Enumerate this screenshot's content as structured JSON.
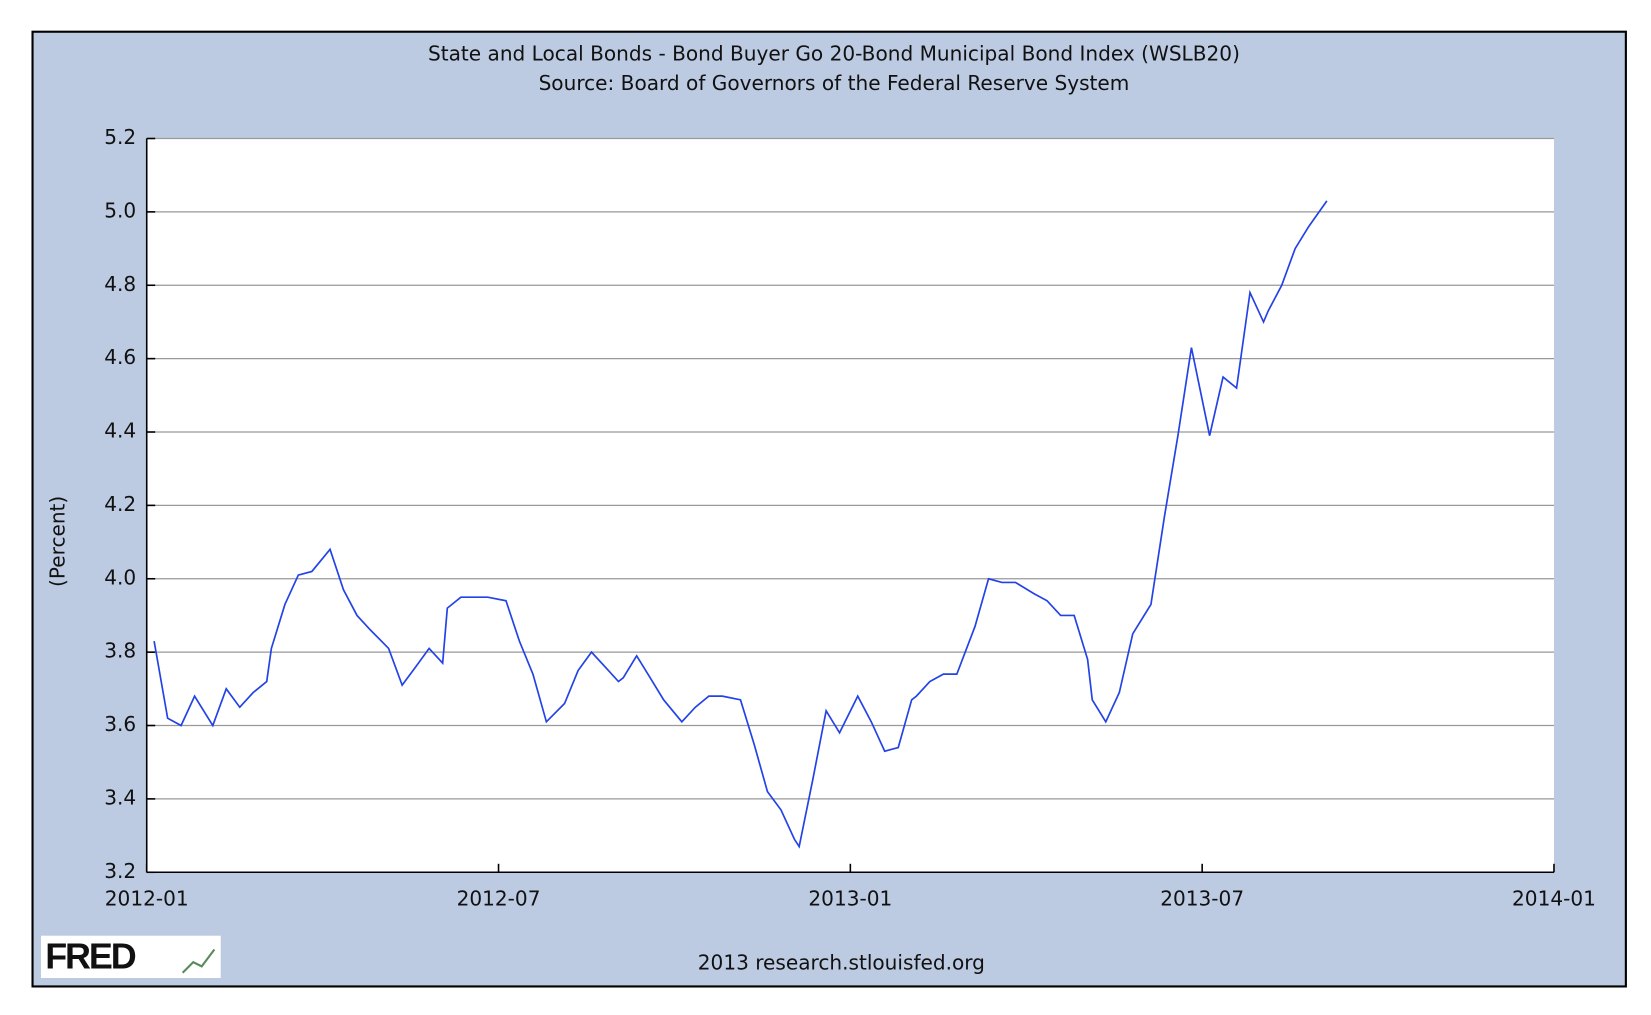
{
  "chart_data": {
    "type": "line",
    "title": "State and Local Bonds - Bond Buyer Go 20-Bond Municipal Bond Index (WSLB20)",
    "subtitle": "Source: Board of Governors of the Federal Reserve System",
    "y_label": "(Percent)",
    "footer": "2013 research.stlouisfed.org",
    "logo": "FRED",
    "x": [
      "2012-01",
      "2012-01",
      "2012-01",
      "2012-01",
      "2012-02",
      "2012-02",
      "2012-02",
      "2012-02",
      "2012-02",
      "2012-03",
      "2012-03",
      "2012-03",
      "2012-03",
      "2012-04",
      "2012-04",
      "2012-04",
      "2012-04",
      "2012-05",
      "2012-05",
      "2012-05",
      "2012-05",
      "2012-05",
      "2012-06",
      "2012-06",
      "2012-06",
      "2012-06",
      "2012-07",
      "2012-07",
      "2012-07",
      "2012-07",
      "2012-08",
      "2012-08",
      "2012-08",
      "2012-08",
      "2012-08",
      "2012-09",
      "2012-09",
      "2012-09",
      "2012-09",
      "2012-10",
      "2012-10",
      "2012-10",
      "2012-10",
      "2012-11",
      "2012-11",
      "2012-11",
      "2012-11",
      "2012-11",
      "2012-12",
      "2012-12",
      "2012-12",
      "2012-12",
      "2013-01",
      "2013-01",
      "2013-01",
      "2013-01",
      "2013-01",
      "2013-02",
      "2013-02",
      "2013-02",
      "2013-02",
      "2013-03",
      "2013-03",
      "2013-03",
      "2013-03",
      "2013-04",
      "2013-04",
      "2013-04",
      "2013-04",
      "2013-04",
      "2013-05",
      "2013-05",
      "2013-05",
      "2013-05",
      "2013-06",
      "2013-06",
      "2013-06",
      "2013-06",
      "2013-07",
      "2013-07",
      "2013-07",
      "2013-07",
      "2013-07",
      "2013-08",
      "2013-08",
      "2013-08",
      "2013-08",
      "2013-09"
    ],
    "series": [
      {
        "name": "WSLB20",
        "color": "#2343e6",
        "values": [
          3.83,
          3.62,
          3.6,
          3.68,
          3.6,
          3.7,
          3.65,
          3.69,
          3.72,
          3.81,
          3.93,
          4.01,
          4.02,
          4.08,
          3.97,
          3.9,
          3.86,
          3.81,
          3.71,
          3.76,
          3.81,
          3.77,
          3.92,
          3.95,
          3.95,
          3.95,
          3.94,
          3.83,
          3.74,
          3.61,
          3.66,
          3.75,
          3.8,
          3.76,
          3.72,
          3.73,
          3.79,
          3.73,
          3.67,
          3.61,
          3.65,
          3.68,
          3.68,
          3.67,
          3.55,
          3.42,
          3.37,
          3.29,
          3.27,
          3.45,
          3.64,
          3.58,
          3.68,
          3.61,
          3.53,
          3.54,
          3.67,
          3.68,
          3.72,
          3.74,
          3.74,
          3.87,
          4.0,
          3.99,
          3.99,
          3.96,
          3.94,
          3.9,
          3.9,
          3.78,
          3.67,
          3.61,
          3.69,
          3.85,
          3.93,
          4.17,
          4.39,
          4.63,
          4.39,
          4.55,
          4.52,
          4.78,
          4.7,
          4.73,
          4.8,
          4.9,
          4.96,
          5.03
        ]
      }
    ],
    "xlim": [
      "2012-01",
      "2014-01"
    ],
    "xticks": [
      "2012-01",
      "2012-07",
      "2013-01",
      "2013-07",
      "2014-01"
    ],
    "ylim": [
      3.2,
      5.2
    ],
    "yticks": [
      3.2,
      3.4,
      3.6,
      3.8,
      {
        "value": 4,
        "label": "4.0"
      },
      4.2,
      4.4,
      4.6,
      4.8,
      {
        "value": 5,
        "label": "5.0"
      },
      5.2
    ],
    "grid": true
  }
}
